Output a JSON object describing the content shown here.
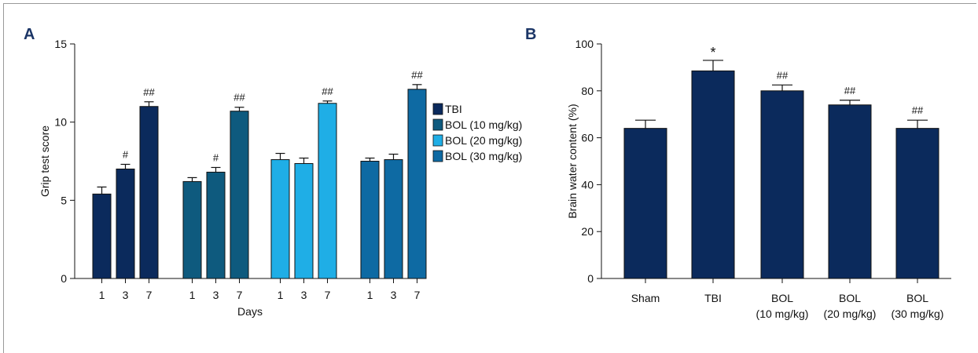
{
  "panels": {
    "a_label": "A",
    "b_label": "B"
  },
  "colors": {
    "TBI": "#0b2a5c",
    "BOL10": "#0e5a7e",
    "BOL20": "#1faee6",
    "BOL30": "#0e6aa3",
    "panelB_bar": "#0b2a5c"
  },
  "chart_data": [
    {
      "type": "bar",
      "panel": "A",
      "xlabel": "Days",
      "ylabel": "Grip test score",
      "ylim": [
        0,
        15
      ],
      "yticks": [
        "0",
        "5",
        "10",
        "15"
      ],
      "legend_position": "right",
      "groups": [
        {
          "name": "TBI",
          "color_key": "TBI",
          "x": [
            "1",
            "3",
            "7"
          ],
          "values": [
            5.4,
            7.0,
            11.0
          ],
          "errors": [
            0.45,
            0.3,
            0.3
          ],
          "labels": [
            "",
            "#",
            "##"
          ]
        },
        {
          "name": "BOL (10 mg/kg)",
          "color_key": "BOL10",
          "x": [
            "1",
            "3",
            "7"
          ],
          "values": [
            6.2,
            6.8,
            10.7
          ],
          "errors": [
            0.25,
            0.3,
            0.25
          ],
          "labels": [
            "",
            "#",
            "##"
          ]
        },
        {
          "name": "BOL (20 mg/kg)",
          "color_key": "BOL20",
          "x": [
            "1",
            "3",
            "7"
          ],
          "values": [
            7.6,
            7.35,
            11.2
          ],
          "errors": [
            0.4,
            0.35,
            0.15
          ],
          "labels": [
            "",
            "",
            "##"
          ]
        },
        {
          "name": "BOL (30 mg/kg)",
          "color_key": "BOL30",
          "x": [
            "1",
            "3",
            "7"
          ],
          "values": [
            7.5,
            7.6,
            12.1
          ],
          "errors": [
            0.2,
            0.35,
            0.3
          ],
          "labels": [
            "",
            "",
            "##"
          ]
        }
      ]
    },
    {
      "type": "bar",
      "panel": "B",
      "xlabel": "",
      "ylabel": "Brain water content (%)",
      "ylim": [
        0,
        100
      ],
      "yticks": [
        "0",
        "20",
        "40",
        "60",
        "80",
        "100"
      ],
      "categories": [
        [
          "Sham"
        ],
        [
          "TBI"
        ],
        [
          "BOL",
          "(10 mg/kg)"
        ],
        [
          "BOL",
          "(20 mg/kg)"
        ],
        [
          "BOL",
          "(30 mg/kg)"
        ]
      ],
      "values": [
        64,
        88.5,
        80,
        74,
        64
      ],
      "errors": [
        3.5,
        4.5,
        2.5,
        2,
        3.5
      ],
      "labels": [
        "",
        "*",
        "##",
        "##",
        "##"
      ]
    }
  ]
}
